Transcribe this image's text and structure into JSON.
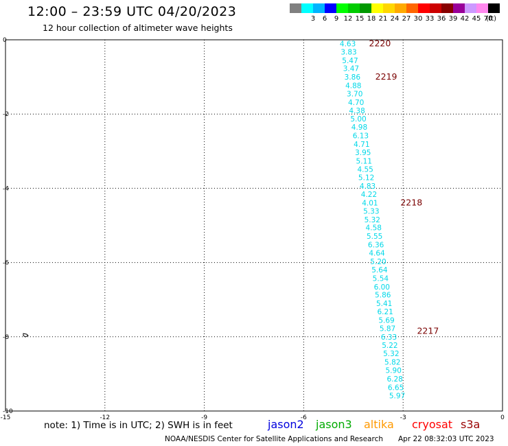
{
  "header": {
    "title": "12:00 – 23:59 UTC 04/20/2023",
    "subtitle": "12 hour collection of altimeter wave heights"
  },
  "color_scale": {
    "unit_label": "(ft)",
    "bins": [
      {
        "label": "",
        "color": "#808080"
      },
      {
        "label": "3",
        "color": "#00ffff"
      },
      {
        "label": "6",
        "color": "#00b4ff"
      },
      {
        "label": "9",
        "color": "#0000ff"
      },
      {
        "label": "12",
        "color": "#00ff00"
      },
      {
        "label": "15",
        "color": "#00cc00"
      },
      {
        "label": "18",
        "color": "#009900"
      },
      {
        "label": "21",
        "color": "#ffff00"
      },
      {
        "label": "24",
        "color": "#ffd700"
      },
      {
        "label": "27",
        "color": "#ffaa00"
      },
      {
        "label": "30",
        "color": "#ff6600"
      },
      {
        "label": "33",
        "color": "#ff0000"
      },
      {
        "label": "36",
        "color": "#cc0000"
      },
      {
        "label": "39",
        "color": "#880000"
      },
      {
        "label": "42",
        "color": "#990099"
      },
      {
        "label": "45",
        "color": "#cc99ff"
      },
      {
        "label": "70",
        "color": "#ff88ee"
      },
      {
        "label": "",
        "color": "#000000"
      }
    ]
  },
  "map": {
    "lon_range": [
      -15,
      0
    ],
    "lat_range": [
      -10,
      0
    ],
    "x_ticks": [
      "-15",
      "-12",
      "-9",
      "-6",
      "-3",
      "0"
    ],
    "x_tick_values": [
      -15,
      -12,
      -9,
      -6,
      -3,
      0
    ],
    "y_ticks": [
      "0",
      "-2",
      "-4",
      "-6",
      "-8",
      "-10"
    ],
    "y_tick_values": [
      0,
      -2,
      -4,
      -6,
      -8,
      -10
    ],
    "grid": "dotted",
    "coastline_marker": {
      "lon": -14.4,
      "lat": -7.95
    },
    "observation_color": "#00d8e8",
    "pass_label_color": "#7a0000",
    "observations": [
      {
        "lon": -4.67,
        "lat": -0.1,
        "value": "4.63"
      },
      {
        "lon": -4.64,
        "lat": -0.32,
        "value": "3.83"
      },
      {
        "lon": -4.6,
        "lat": -0.55,
        "value": "5.47"
      },
      {
        "lon": -4.57,
        "lat": -0.77,
        "value": "3.47"
      },
      {
        "lon": -4.53,
        "lat": -1.0,
        "value": "3.86"
      },
      {
        "lon": -4.5,
        "lat": -1.23,
        "value": "4.88"
      },
      {
        "lon": -4.46,
        "lat": -1.45,
        "value": "3.70"
      },
      {
        "lon": -4.42,
        "lat": -1.68,
        "value": "4.70"
      },
      {
        "lon": -4.39,
        "lat": -1.9,
        "value": "4.38"
      },
      {
        "lon": -4.35,
        "lat": -2.13,
        "value": "5.00"
      },
      {
        "lon": -4.32,
        "lat": -2.35,
        "value": "4.98"
      },
      {
        "lon": -4.28,
        "lat": -2.58,
        "value": "6.13"
      },
      {
        "lon": -4.25,
        "lat": -2.81,
        "value": "4.71"
      },
      {
        "lon": -4.21,
        "lat": -3.03,
        "value": "3.95"
      },
      {
        "lon": -4.18,
        "lat": -3.26,
        "value": "5.11"
      },
      {
        "lon": -4.14,
        "lat": -3.48,
        "value": "4.55"
      },
      {
        "lon": -4.11,
        "lat": -3.71,
        "value": "5.12"
      },
      {
        "lon": -4.07,
        "lat": -3.94,
        "value": "4.83"
      },
      {
        "lon": -4.03,
        "lat": -4.16,
        "value": "4.22"
      },
      {
        "lon": -4.0,
        "lat": -4.39,
        "value": "4.01"
      },
      {
        "lon": -3.96,
        "lat": -4.61,
        "value": "5.33"
      },
      {
        "lon": -3.93,
        "lat": -4.84,
        "value": "5.32"
      },
      {
        "lon": -3.89,
        "lat": -5.06,
        "value": "4.58"
      },
      {
        "lon": -3.86,
        "lat": -5.29,
        "value": "5.55"
      },
      {
        "lon": -3.82,
        "lat": -5.52,
        "value": "6.36"
      },
      {
        "lon": -3.79,
        "lat": -5.74,
        "value": "4.64"
      },
      {
        "lon": -3.75,
        "lat": -5.97,
        "value": "5.20"
      },
      {
        "lon": -3.71,
        "lat": -6.19,
        "value": "5.64"
      },
      {
        "lon": -3.68,
        "lat": -6.42,
        "value": "5.54"
      },
      {
        "lon": -3.64,
        "lat": -6.65,
        "value": "6.00"
      },
      {
        "lon": -3.61,
        "lat": -6.87,
        "value": "5.86"
      },
      {
        "lon": -3.57,
        "lat": -7.1,
        "value": "5.41"
      },
      {
        "lon": -3.54,
        "lat": -7.32,
        "value": "6.21"
      },
      {
        "lon": -3.5,
        "lat": -7.55,
        "value": "5.69"
      },
      {
        "lon": -3.47,
        "lat": -7.77,
        "value": "5.87"
      },
      {
        "lon": -3.43,
        "lat": -8.0,
        "value": "6.33"
      },
      {
        "lon": -3.4,
        "lat": -8.23,
        "value": "5.22"
      },
      {
        "lon": -3.36,
        "lat": -8.45,
        "value": "5.32"
      },
      {
        "lon": -3.32,
        "lat": -8.68,
        "value": "5.82"
      },
      {
        "lon": -3.29,
        "lat": -8.9,
        "value": "5.90"
      },
      {
        "lon": -3.25,
        "lat": -9.13,
        "value": "6.28"
      },
      {
        "lon": -3.22,
        "lat": -9.36,
        "value": "6.65"
      },
      {
        "lon": -3.18,
        "lat": -9.58,
        "value": "5.97"
      }
    ],
    "pass_labels": [
      {
        "lon": -3.7,
        "lat": -0.1,
        "text": "2220"
      },
      {
        "lon": -3.51,
        "lat": -1.0,
        "text": "2219"
      },
      {
        "lon": -2.75,
        "lat": -4.39,
        "text": "2218"
      },
      {
        "lon": -2.25,
        "lat": -7.85,
        "text": "2217"
      }
    ]
  },
  "footer": {
    "note": "note: 1) Time is in UTC; 2) SWH is in feet",
    "satellites": [
      {
        "name": "jason2",
        "color": "#0000dd"
      },
      {
        "name": "jason3",
        "color": "#00aa00"
      },
      {
        "name": "altika",
        "color": "#ff9900"
      },
      {
        "name": "cryosat",
        "color": "#ff0000"
      },
      {
        "name": "s3a",
        "color": "#990000"
      }
    ],
    "credit": "NOAA/NESDIS Center for Satellite Applications and Research",
    "timestamp": "Apr 22 08:32:03 UTC 2023"
  }
}
